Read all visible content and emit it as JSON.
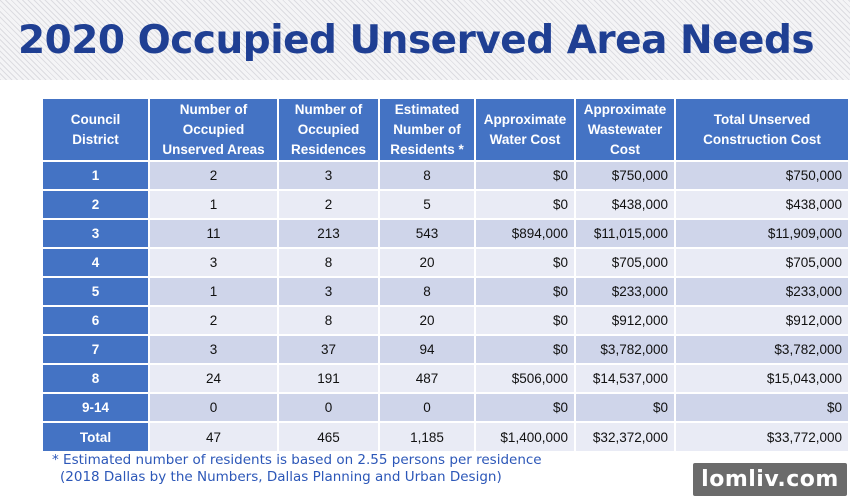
{
  "title": "2020 Occupied Unserved Area Needs",
  "table": {
    "headers": [
      "Council District",
      "Number of Occupied Unserved Areas",
      "Number of Occupied Residences",
      "Estimated Number of Residents *",
      "Approximate Water Cost",
      "Approximate Wastewater Cost",
      "Total Unserved Construction Cost"
    ],
    "rows": [
      [
        "1",
        "2",
        "3",
        "8",
        "$0",
        "$750,000",
        "$750,000"
      ],
      [
        "2",
        "1",
        "2",
        "5",
        "$0",
        "$438,000",
        "$438,000"
      ],
      [
        "3",
        "11",
        "213",
        "543",
        "$894,000",
        "$11,015,000",
        "$11,909,000"
      ],
      [
        "4",
        "3",
        "8",
        "20",
        "$0",
        "$705,000",
        "$705,000"
      ],
      [
        "5",
        "1",
        "3",
        "8",
        "$0",
        "$233,000",
        "$233,000"
      ],
      [
        "6",
        "2",
        "8",
        "20",
        "$0",
        "$912,000",
        "$912,000"
      ],
      [
        "7",
        "3",
        "37",
        "94",
        "$0",
        "$3,782,000",
        "$3,782,000"
      ],
      [
        "8",
        "24",
        "191",
        "487",
        "$506,000",
        "$14,537,000",
        "$15,043,000"
      ],
      [
        "9-14",
        "0",
        "0",
        "0",
        "$0",
        "$0",
        "$0"
      ],
      [
        "Total",
        "47",
        "465",
        "1,185",
        "$1,400,000",
        "$32,372,000",
        "$33,772,000"
      ]
    ]
  },
  "footnote": {
    "line1": "* Estimated number of residents is based on 2.55 persons per residence",
    "line2": "(2018 Dallas by the Numbers, Dallas Planning and Urban Design)"
  },
  "watermark": "lomliv.com",
  "colors": {
    "title": "#1f3f93",
    "header_bg": "#4473c4",
    "row_dark": "#cfd5ea",
    "row_light": "#e9ebf5",
    "footnote": "#2c57b8"
  }
}
